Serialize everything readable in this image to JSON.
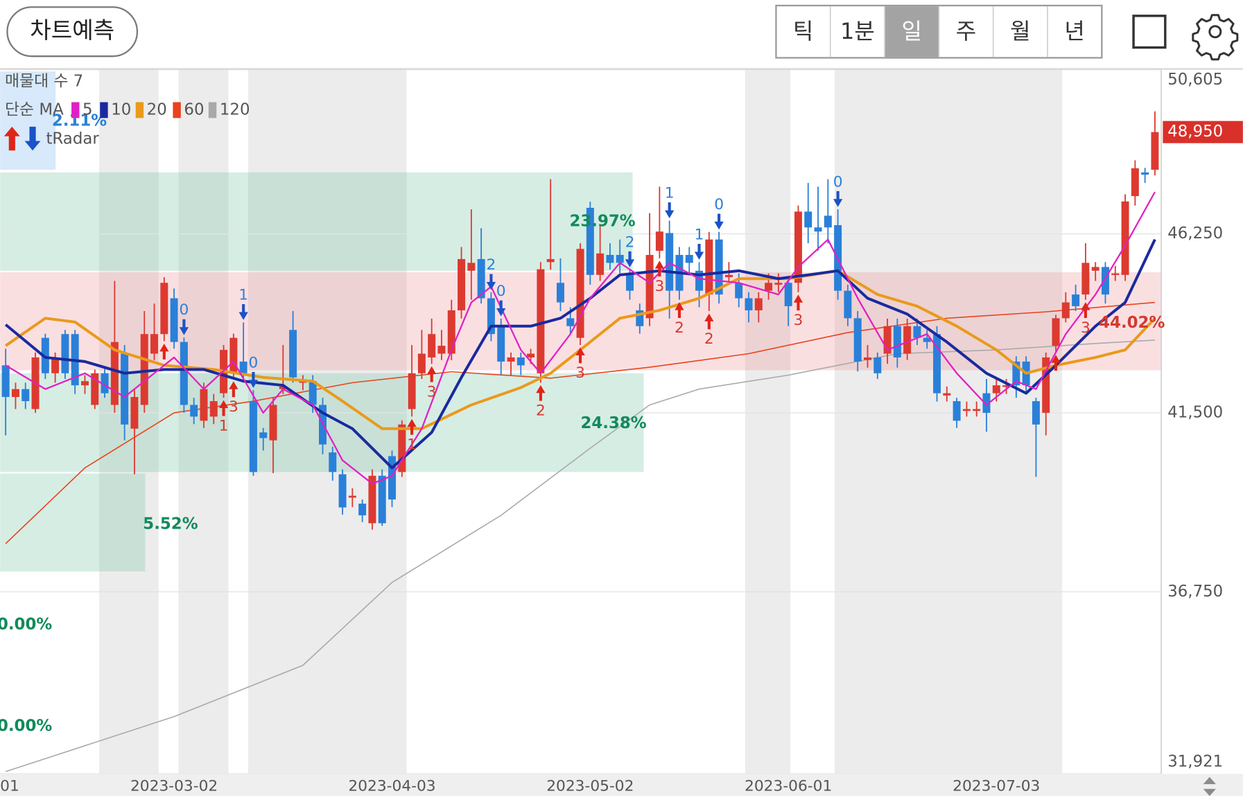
{
  "toolbar": {
    "predict_button": "차트예측",
    "periods": [
      "틱",
      "1분",
      "일",
      "주",
      "월",
      "년"
    ],
    "selected_period": 2
  },
  "legend": {
    "volume_profile": "매물대 수 7",
    "ma_label": "단순 MA",
    "radar_label": "tRadar"
  },
  "chart_data": {
    "type": "candlestick",
    "up_color": "#dc3a30",
    "down_color": "#2a80d8",
    "categories": [
      "01",
      null,
      null,
      null,
      null,
      null,
      null,
      null,
      null,
      null,
      null,
      null,
      null,
      null,
      null,
      null,
      null,
      "2023-03-02",
      null,
      null,
      null,
      null,
      null,
      null,
      null,
      null,
      null,
      null,
      null,
      null,
      null,
      null,
      null,
      null,
      null,
      null,
      null,
      null,
      null,
      "2023-04-03",
      null,
      null,
      null,
      null,
      null,
      null,
      null,
      null,
      null,
      null,
      null,
      null,
      null,
      null,
      null,
      null,
      null,
      null,
      null,
      "2023-05-02",
      null,
      null,
      null,
      null,
      null,
      null,
      null,
      null,
      null,
      null,
      null,
      null,
      null,
      null,
      null,
      null,
      null,
      null,
      null,
      "2023-06-01",
      null,
      null,
      null,
      null,
      null,
      null,
      null,
      null,
      null,
      null,
      null,
      null,
      null,
      null,
      null,
      null,
      null,
      null,
      null,
      null,
      "2023-07-03",
      null,
      null,
      null,
      null,
      null,
      null,
      null,
      null,
      null,
      null,
      null,
      null,
      null,
      null,
      null,
      null
    ],
    "open": [
      42760,
      41920,
      42130,
      41600,
      43490,
      42550,
      43590,
      43590,
      42230,
      41710,
      42550,
      41710,
      43070,
      41080,
      41710,
      43070,
      43590,
      44540,
      43380,
      41710,
      41290,
      41400,
      42020,
      42550,
      42860,
      41810,
      40980,
      40770,
      42130,
      43700,
      42300,
      42340,
      41710,
      40450,
      39870,
      39250,
      39090,
      38570,
      39830,
      40350,
      39930,
      41600,
      42550,
      42970,
      43070,
      43070,
      44220,
      45270,
      45580,
      44540,
      43800,
      42860,
      42970,
      42970,
      42550,
      45500,
      44950,
      44010,
      43490,
      46940,
      45160,
      45690,
      45690,
      45160,
      44220,
      44010,
      45800,
      46270,
      45690,
      45690,
      45270,
      44640,
      46100,
      45100,
      44950,
      44540,
      44220,
      44740,
      44900,
      44950,
      44950,
      46840,
      46420,
      46730,
      46480,
      44740,
      44010,
      42900,
      42970,
      43070,
      43800,
      43070,
      43800,
      43490,
      43590,
      41960,
      41810,
      41550,
      41550,
      42020,
      42020,
      42200,
      42860,
      42860,
      41810,
      41500,
      43280,
      44010,
      44640,
      44640,
      45270,
      45370,
      45160,
      45160,
      47250,
      47880,
      47950
    ],
    "high": [
      43200,
      42300,
      42300,
      43100,
      43600,
      43100,
      43700,
      43700,
      42500,
      42650,
      42700,
      45000,
      43300,
      42100,
      44200,
      44400,
      45100,
      44800,
      43500,
      41900,
      42300,
      42000,
      43300,
      43600,
      43900,
      42100,
      41100,
      41900,
      43300,
      44200,
      42500,
      42500,
      41900,
      40600,
      40000,
      39500,
      39200,
      40000,
      40000,
      40500,
      41300,
      43300,
      43700,
      44000,
      43700,
      44500,
      45900,
      46900,
      46400,
      44700,
      44000,
      43100,
      43100,
      43200,
      45500,
      47700,
      45600,
      44300,
      46000,
      47100,
      46500,
      46000,
      46100,
      45300,
      44400,
      46800,
      47500,
      46600,
      45900,
      45900,
      45500,
      46300,
      46300,
      45500,
      45200,
      44700,
      44700,
      45200,
      45200,
      45100,
      47000,
      47600,
      47500,
      47700,
      46900,
      44900,
      44200,
      43300,
      43100,
      44000,
      44000,
      44000,
      44000,
      43700,
      43800,
      42200,
      41900,
      41800,
      41800,
      42400,
      42400,
      42400,
      43000,
      43000,
      41900,
      43100,
      44100,
      44700,
      44900,
      46000,
      45500,
      45500,
      45400,
      47300,
      48200,
      48000,
      49500
    ],
    "low": [
      40900,
      41600,
      41600,
      41500,
      42400,
      42300,
      42400,
      42000,
      42000,
      41600,
      41900,
      41500,
      40770,
      39870,
      41500,
      42900,
      43400,
      43200,
      41500,
      41200,
      41100,
      41200,
      41900,
      42400,
      42400,
      39830,
      40500,
      39900,
      42000,
      42300,
      42100,
      41500,
      40400,
      39700,
      38800,
      39000,
      38600,
      38400,
      38500,
      39000,
      39800,
      41400,
      42400,
      42800,
      42900,
      42900,
      44000,
      44500,
      44400,
      43400,
      42500,
      42500,
      42500,
      42800,
      42300,
      45300,
      44200,
      43600,
      43300,
      44900,
      45000,
      45300,
      45200,
      44500,
      43600,
      43800,
      45600,
      44000,
      44500,
      45200,
      44300,
      44200,
      44400,
      44900,
      44300,
      43900,
      43900,
      44500,
      44700,
      43800,
      44700,
      46000,
      45800,
      46000,
      44500,
      43800,
      42600,
      42700,
      42400,
      42800,
      42700,
      42900,
      43300,
      43200,
      41800,
      41800,
      41100,
      41400,
      41400,
      41000,
      41800,
      42000,
      41900,
      42000,
      39800,
      40900,
      43100,
      43900,
      44200,
      44500,
      45000,
      44400,
      45000,
      45000,
      47000,
      47600,
      47800
    ],
    "close": [
      41920,
      42130,
      41810,
      42970,
      42550,
      42970,
      42550,
      42230,
      42340,
      42550,
      42020,
      43380,
      41190,
      41920,
      43590,
      43590,
      44950,
      43380,
      41710,
      41400,
      42130,
      41810,
      43170,
      43490,
      42550,
      39930,
      40830,
      41710,
      42200,
      42440,
      42340,
      41710,
      40660,
      39930,
      38990,
      39300,
      38780,
      39830,
      38570,
      39200,
      41190,
      42550,
      43070,
      43590,
      43280,
      44220,
      45580,
      45480,
      44540,
      43590,
      42860,
      42970,
      42760,
      43070,
      45310,
      45580,
      44430,
      43800,
      45850,
      45160,
      45730,
      45480,
      45480,
      44740,
      43800,
      45690,
      46310,
      44740,
      44740,
      45480,
      44740,
      46100,
      44640,
      45160,
      44540,
      44220,
      44540,
      44950,
      44950,
      44330,
      46840,
      46420,
      46310,
      46420,
      44740,
      44010,
      42860,
      42970,
      42550,
      43800,
      42970,
      43800,
      43490,
      43380,
      42020,
      42020,
      41290,
      41600,
      41600,
      41500,
      42230,
      42230,
      42230,
      42230,
      41190,
      42970,
      44010,
      44430,
      44330,
      45480,
      45370,
      44640,
      45200,
      47110,
      47990,
      47820,
      48950
    ],
    "series": [
      {
        "name": "5",
        "color": "#e021c2",
        "width": 2,
        "x": [
          0,
          4,
          8,
          12,
          15,
          17,
          20,
          23,
          26,
          28,
          31,
          34,
          37,
          39,
          42,
          45,
          47,
          49,
          52,
          54,
          57,
          59,
          62,
          65,
          67,
          70,
          74,
          78,
          80,
          83,
          86,
          89,
          93,
          96,
          99,
          102,
          104,
          107,
          110,
          113,
          116
        ],
        "values": [
          42760,
          42130,
          42550,
          41920,
          42550,
          42970,
          42130,
          42860,
          41500,
          42130,
          41710,
          40240,
          39620,
          39830,
          41080,
          43170,
          44430,
          44850,
          43170,
          42550,
          43590,
          44540,
          45480,
          44950,
          45480,
          45060,
          44950,
          44640,
          45370,
          46100,
          44540,
          43170,
          43590,
          42550,
          41710,
          42340,
          42130,
          43590,
          44640,
          45940,
          47360
        ]
      },
      {
        "name": "10",
        "color": "#1a2a9e",
        "width": 3.5,
        "x": [
          0,
          4,
          8,
          12,
          16,
          20,
          24,
          28,
          32,
          35,
          39,
          43,
          46,
          49,
          53,
          56,
          59,
          62,
          66,
          70,
          74,
          78,
          81,
          84,
          87,
          91,
          95,
          99,
          103,
          106,
          110,
          113,
          116
        ],
        "values": [
          43840,
          42970,
          42860,
          42550,
          42650,
          42650,
          42340,
          42230,
          41500,
          41080,
          40040,
          40980,
          42440,
          43800,
          43800,
          44010,
          44540,
          45160,
          45270,
          45160,
          45270,
          45060,
          45160,
          45270,
          44540,
          44120,
          43380,
          42550,
          42020,
          42760,
          43800,
          44430,
          46100
        ]
      },
      {
        "name": "20",
        "color": "#e99a1b",
        "width": 3.5,
        "x": [
          0,
          4,
          7,
          11,
          16,
          21,
          26,
          31,
          34,
          38,
          42,
          47,
          52,
          55,
          58,
          62,
          66,
          70,
          74,
          79,
          84,
          88,
          92,
          96,
          100,
          103,
          106,
          110,
          113,
          116
        ],
        "values": [
          43280,
          44010,
          43910,
          43170,
          42760,
          42650,
          42440,
          42340,
          41810,
          41080,
          41080,
          41710,
          42170,
          42550,
          43170,
          44010,
          44220,
          44540,
          45060,
          45060,
          45270,
          44640,
          44330,
          43800,
          43170,
          42550,
          42760,
          42970,
          43170,
          44010
        ]
      },
      {
        "name": "60",
        "color": "#e8431c",
        "width": 1.4,
        "x": [
          0,
          8,
          17,
          25,
          35,
          45,
          55,
          65,
          75,
          85,
          95,
          105,
          116
        ],
        "values": [
          38030,
          40040,
          41500,
          41810,
          42300,
          42590,
          42420,
          42710,
          43070,
          43630,
          44010,
          44180,
          44430
        ]
      },
      {
        "name": "120",
        "color": "#a9a9a9",
        "width": 1.4,
        "x": [
          0,
          17,
          30,
          39,
          50,
          59,
          65,
          70,
          79,
          90,
          100,
          110,
          116
        ],
        "values": [
          31980,
          33440,
          34800,
          37000,
          38780,
          40560,
          41710,
          42130,
          42500,
          43070,
          43170,
          43340,
          43430
        ]
      }
    ],
    "zones": [
      {
        "range": [
          45270,
          47880
        ],
        "fill": "rgba(120,195,165,0.30)",
        "label": "23.97%",
        "label_color": "#128a5c"
      },
      {
        "range": [
          42630,
          45230
        ],
        "fill": "rgba(238,150,155,0.30)",
        "label": "44.02%",
        "label_color": "#d23a2e"
      },
      {
        "range": [
          39930,
          42550
        ],
        "fill": "rgba(120,195,165,0.30)",
        "label": "24.38%",
        "label_color": "#128a5c"
      },
      {
        "range": [
          37290,
          39890
        ],
        "fill": "rgba(120,195,165,0.30)",
        "label": "5.52%",
        "label_color": "#128a5c"
      },
      {
        "range": [
          47950,
          50560
        ],
        "fill": "rgba(150,196,242,0.38)",
        "label": "2.11%",
        "label_color": "#2a80d8"
      },
      {
        "range": [
          34620,
          37230
        ],
        "fill": "rgba(120,195,165,0.30)",
        "label": "0.00%",
        "label_color": "#128a5c"
      },
      {
        "range": [
          32000,
          34550
        ],
        "fill": "rgba(120,195,165,0.30)",
        "label": "0.00%",
        "label_color": "#128a5c"
      }
    ],
    "signals": [
      {
        "index": 18,
        "direction": "down",
        "label": "0"
      },
      {
        "index": 24,
        "direction": "down",
        "label": "1"
      },
      {
        "index": 25,
        "direction": "down",
        "label": "0"
      },
      {
        "index": 49,
        "direction": "down",
        "label": "2"
      },
      {
        "index": 50,
        "direction": "down",
        "label": "0"
      },
      {
        "index": 63,
        "direction": "down",
        "label": "2"
      },
      {
        "index": 67,
        "direction": "down",
        "label": "1"
      },
      {
        "index": 70,
        "direction": "down",
        "label": "1"
      },
      {
        "index": 72,
        "direction": "down",
        "label": "0"
      },
      {
        "index": 84,
        "direction": "down",
        "label": "0"
      },
      {
        "index": 16,
        "direction": "up"
      },
      {
        "index": 22,
        "direction": "up",
        "label": "1"
      },
      {
        "index": 23,
        "direction": "up",
        "label": "3"
      },
      {
        "index": 41,
        "direction": "up",
        "label": "1"
      },
      {
        "index": 43,
        "direction": "up",
        "label": "3"
      },
      {
        "index": 54,
        "direction": "up",
        "label": "2"
      },
      {
        "index": 58,
        "direction": "up",
        "label": "3"
      },
      {
        "index": 66,
        "direction": "up",
        "label": "3"
      },
      {
        "index": 68,
        "direction": "up",
        "label": "2"
      },
      {
        "index": 71,
        "direction": "up",
        "label": "2"
      },
      {
        "index": 80,
        "direction": "up",
        "label": "3"
      },
      {
        "index": 106,
        "direction": "up"
      },
      {
        "index": 109,
        "direction": "up",
        "label": "3"
      }
    ],
    "last_price": {
      "value": 48950,
      "label": "48,950"
    },
    "ylim": [
      31921,
      50605
    ],
    "yticks": [
      {
        "value": 50605,
        "label": "50,605"
      },
      {
        "value": 46250,
        "label": "46,250"
      },
      {
        "value": 41500,
        "label": "41,500"
      },
      {
        "value": 36750,
        "label": "36,750"
      },
      {
        "value": 31921,
        "label": "31,921"
      }
    ],
    "grid": true
  }
}
